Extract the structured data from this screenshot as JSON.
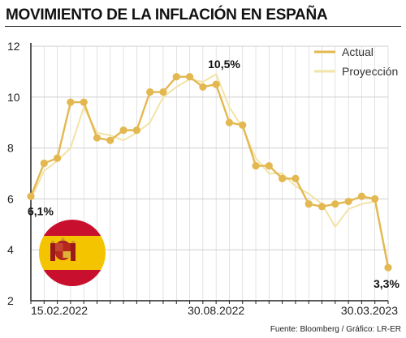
{
  "colors": {
    "actual": "#e3b850",
    "projection": "#f2e3a6",
    "axis": "#222222",
    "grid": "#cfcfcf",
    "flag_red": "#c8102e",
    "flag_yellow": "#f5c400"
  },
  "title": "MOVIMIENTO DE LA INFLACIÓN EN ESPAÑA",
  "source": "Fuente: Bloomberg / Gráfico: LR-ER",
  "chart_data": {
    "type": "line",
    "ylim": [
      2,
      12
    ],
    "yticks": [
      "2",
      "4",
      "6",
      "8",
      "10",
      "12"
    ],
    "xtick_labels": [
      "15.02.2022",
      "30.08.2022",
      "30.03.2023"
    ],
    "xtick_index": [
      0,
      14,
      27
    ],
    "x": [
      0,
      1,
      2,
      3,
      4,
      5,
      6,
      7,
      8,
      9,
      10,
      11,
      12,
      13,
      14,
      15,
      16,
      17,
      18,
      19,
      20,
      21,
      22,
      23,
      24,
      25,
      26,
      27
    ],
    "legend": {
      "position": "top-right",
      "entries": [
        "Actual",
        "Proyección"
      ]
    },
    "series": [
      {
        "name": "Actual",
        "values": [
          6.1,
          7.4,
          7.6,
          9.8,
          9.8,
          8.4,
          8.3,
          8.7,
          8.7,
          10.2,
          10.2,
          10.8,
          10.8,
          10.4,
          10.5,
          9.0,
          8.9,
          7.3,
          7.3,
          6.8,
          6.8,
          5.8,
          5.7,
          5.8,
          5.9,
          6.1,
          6.0,
          3.3
        ]
      },
      {
        "name": "Proyección",
        "values": [
          6.0,
          7.1,
          7.5,
          8.0,
          9.6,
          8.6,
          8.5,
          8.3,
          8.6,
          9.0,
          10.0,
          10.4,
          10.7,
          10.6,
          10.9,
          9.6,
          8.8,
          7.6,
          7.0,
          7.0,
          6.5,
          6.2,
          5.8,
          4.9,
          5.6,
          5.8,
          5.9,
          3.4
        ]
      }
    ],
    "annotations": [
      {
        "index": 0,
        "series": "Actual",
        "text": "6,1%"
      },
      {
        "index": 14,
        "series": "Actual",
        "text": "10,5%"
      },
      {
        "index": 27,
        "series": "Actual",
        "text": "3,3%"
      }
    ]
  }
}
